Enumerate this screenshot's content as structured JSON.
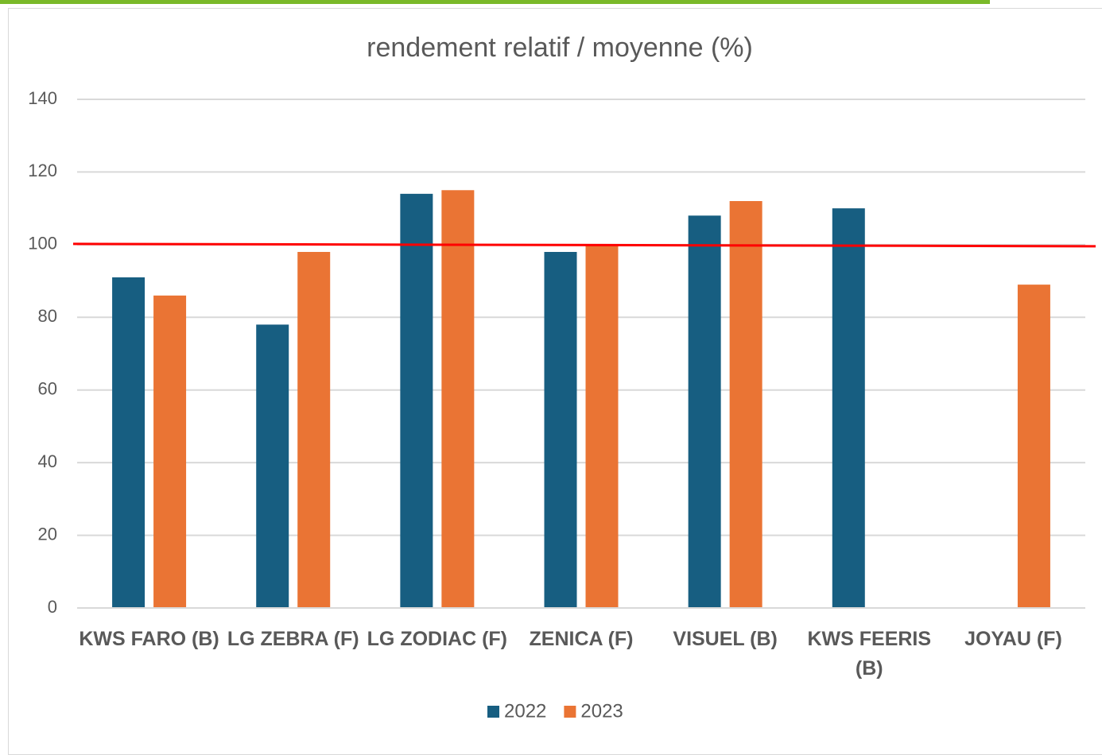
{
  "chart_data": {
    "type": "bar",
    "title": "rendement relatif / moyenne (%)",
    "categories": [
      "KWS FARO (B)",
      "LG ZEBRA (F)",
      "LG ZODIAC (F)",
      "ZENICA (F)",
      "VISUEL (B)",
      "KWS FEERIS (B)",
      "JOYAU (F)"
    ],
    "series": [
      {
        "name": "2022",
        "color": "#175e81",
        "values": [
          91,
          78,
          114,
          98,
          108,
          110,
          null
        ]
      },
      {
        "name": "2023",
        "color": "#ea7434",
        "values": [
          86,
          98,
          115,
          100,
          112,
          null,
          89
        ]
      }
    ],
    "ylim": [
      0,
      140
    ],
    "yticks": [
      0,
      20,
      40,
      60,
      80,
      100,
      120,
      140
    ],
    "grid": true,
    "reference_line": {
      "value": 100,
      "color": "#ff0000"
    },
    "legend": "bottom"
  }
}
